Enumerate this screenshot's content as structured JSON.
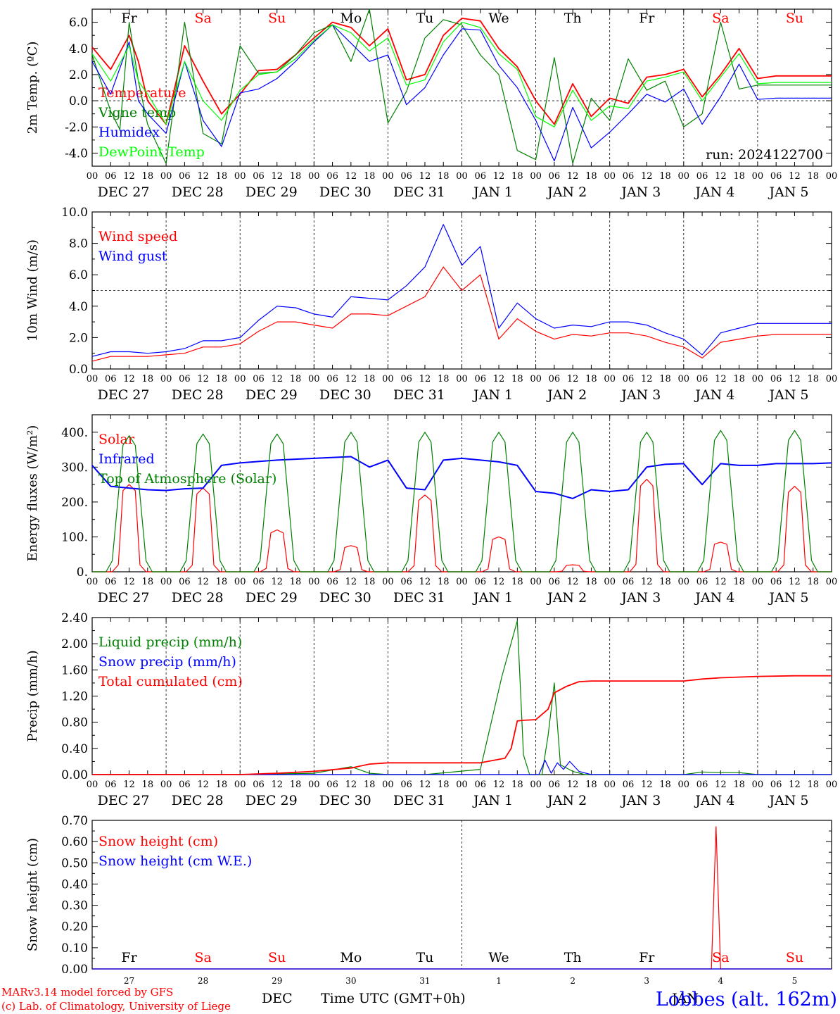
{
  "x_hour_labels": [
    "00",
    "06",
    "12",
    "18"
  ],
  "x_last_label": "00",
  "date_labels": [
    "DEC 27",
    "DEC 28",
    "DEC 29",
    "DEC 30",
    "DEC 31",
    "JAN  1",
    "JAN  2",
    "JAN  3",
    "JAN  4",
    "JAN  5"
  ],
  "weekdays": [
    {
      "label": "Fr",
      "color": "#000000"
    },
    {
      "label": "Sa",
      "color": "#ff0000"
    },
    {
      "label": "Su",
      "color": "#ff0000"
    },
    {
      "label": "Mo",
      "color": "#000000"
    },
    {
      "label": "Tu",
      "color": "#000000"
    },
    {
      "label": "We",
      "color": "#000000"
    },
    {
      "label": "Th",
      "color": "#000000"
    },
    {
      "label": "Fr",
      "color": "#000000"
    },
    {
      "label": "Sa",
      "color": "#ff0000"
    },
    {
      "label": "Su",
      "color": "#ff0000"
    }
  ],
  "day_numbers": [
    "27",
    "28",
    "29",
    "30",
    "31",
    "1",
    "2",
    "3",
    "4",
    "5"
  ],
  "footer": {
    "month_left": "DEC",
    "axis_title": "Time UTC (GMT+0h)",
    "month_right": "JAN",
    "credit_1": "MARv3.14 model forced by GFS",
    "credit_2": "(c) Lab. of Climatology, University of Liege",
    "station": "Lobbes (alt. 162m)"
  },
  "colors": {
    "red": "#ff0000",
    "green": "#008000",
    "blue": "#0000ff",
    "lightgreen": "#00ff00"
  },
  "chart_data": [
    {
      "type": "line",
      "ylabel": "2m Temp. (ºC)",
      "ylim": [
        -5,
        7
      ],
      "yticks": [
        -4,
        -2,
        0,
        2,
        4,
        6
      ],
      "ytick_labels": [
        "-4.0",
        "-2.0",
        "0.0",
        "2.0",
        "4.0",
        "6.0"
      ],
      "ref_line": 0,
      "annotation": "run: 2024122700",
      "x_unit": "hours since DEC 27 00 UTC",
      "series": [
        {
          "name": "Temperature",
          "color": "#ff0000",
          "x": [
            0,
            6,
            12,
            15,
            18,
            24,
            30,
            36,
            42,
            48,
            54,
            60,
            66,
            72,
            78,
            84,
            90,
            96,
            102,
            108,
            114,
            120,
            126,
            132,
            138,
            144,
            150,
            156,
            162,
            168,
            174,
            180,
            186,
            192,
            198,
            204,
            210,
            216,
            222,
            228,
            234,
            240
          ],
          "y": [
            4.1,
            2.4,
            5.0,
            3.0,
            0.0,
            -1.8,
            4.2,
            1.5,
            -1.0,
            0.5,
            2.3,
            2.4,
            3.5,
            4.8,
            6.0,
            5.6,
            4.2,
            5.5,
            1.6,
            2.0,
            5.0,
            6.3,
            6.1,
            4.0,
            2.6,
            0.0,
            -1.8,
            1.3,
            -1.2,
            0.2,
            -0.2,
            1.8,
            2.0,
            2.4,
            0.3,
            2.0,
            4.0,
            1.7,
            1.9,
            1.9,
            1.9,
            1.9
          ]
        },
        {
          "name": "Vigne temp",
          "color": "#008000",
          "x": [
            0,
            6,
            9,
            12,
            15,
            18,
            24,
            30,
            36,
            42,
            48,
            54,
            60,
            66,
            72,
            78,
            84,
            90,
            96,
            102,
            108,
            114,
            120,
            126,
            132,
            138,
            144,
            150,
            156,
            162,
            168,
            174,
            180,
            186,
            192,
            198,
            204,
            210,
            216,
            222,
            228,
            234,
            240
          ],
          "y": [
            3.5,
            -0.8,
            -2.2,
            6.0,
            1.5,
            -1.8,
            -4.8,
            6.0,
            -2.5,
            -3.3,
            4.2,
            2.1,
            2.2,
            3.5,
            5.2,
            5.8,
            3.0,
            7.0,
            -1.7,
            0.7,
            4.8,
            6.2,
            5.8,
            3.5,
            2.0,
            -3.8,
            -4.5,
            3.3,
            -4.8,
            0.2,
            -1.5,
            3.2,
            0.8,
            1.5,
            -2.0,
            -1.0,
            6.0,
            0.9,
            1.2,
            1.2,
            1.2,
            1.2,
            1.2
          ]
        },
        {
          "name": "Humidex",
          "color": "#0000ff",
          "x": [
            0,
            6,
            12,
            15,
            18,
            24,
            30,
            36,
            42,
            48,
            54,
            60,
            66,
            72,
            78,
            84,
            90,
            96,
            102,
            108,
            114,
            120,
            126,
            132,
            138,
            144,
            150,
            156,
            162,
            168,
            174,
            180,
            186,
            192,
            198,
            204,
            210,
            216,
            222,
            228,
            234,
            240
          ],
          "y": [
            3.0,
            0.5,
            4.5,
            0.0,
            -1.0,
            -2.5,
            3.0,
            -1.5,
            -3.5,
            0.6,
            0.9,
            1.7,
            3.0,
            4.5,
            5.8,
            4.4,
            3.0,
            3.5,
            -0.3,
            1.0,
            3.5,
            5.5,
            5.4,
            2.7,
            1.0,
            -1.5,
            -4.6,
            -0.5,
            -3.6,
            -2.4,
            -1.0,
            0.5,
            -0.1,
            0.9,
            -1.8,
            0.3,
            2.8,
            0.1,
            0.2,
            0.2,
            0.2,
            0.2
          ]
        },
        {
          "name": "DewPoint Temp",
          "color": "#00ff00",
          "x": [
            0,
            6,
            12,
            15,
            18,
            24,
            30,
            36,
            42,
            48,
            54,
            60,
            66,
            72,
            78,
            84,
            90,
            96,
            102,
            108,
            114,
            120,
            126,
            132,
            138,
            144,
            150,
            156,
            162,
            168,
            174,
            180,
            186,
            192,
            198,
            204,
            210,
            216,
            222,
            228,
            234,
            240
          ],
          "y": [
            3.6,
            1.5,
            4.2,
            1.5,
            0.5,
            -1.8,
            3.0,
            0.0,
            -1.5,
            0.8,
            2.0,
            2.2,
            3.2,
            4.6,
            5.8,
            5.2,
            3.8,
            4.8,
            1.2,
            1.6,
            4.5,
            6.0,
            5.6,
            3.6,
            2.4,
            -1.2,
            -2.0,
            0.8,
            -1.5,
            -0.4,
            -0.6,
            1.5,
            1.8,
            2.2,
            0.0,
            1.8,
            3.6,
            1.3,
            1.4,
            1.4,
            1.4,
            1.4
          ]
        }
      ]
    },
    {
      "type": "line",
      "ylabel": "10m Wind (m/s)",
      "ylim": [
        0,
        10
      ],
      "yticks": [
        0,
        2,
        4,
        6,
        8,
        10
      ],
      "ytick_labels": [
        "0.0",
        "2.0",
        "4.0",
        "6.0",
        "8.0",
        "10.0"
      ],
      "ref_line": 5,
      "x_unit": "hours since DEC 27 00 UTC",
      "series": [
        {
          "name": "Wind speed",
          "color": "#ff0000",
          "x": [
            0,
            6,
            12,
            18,
            24,
            30,
            36,
            42,
            48,
            54,
            60,
            66,
            72,
            78,
            84,
            90,
            96,
            102,
            108,
            114,
            120,
            126,
            132,
            138,
            144,
            150,
            156,
            162,
            168,
            174,
            180,
            186,
            192,
            198,
            204,
            210,
            216,
            222,
            228,
            234,
            240
          ],
          "y": [
            0.5,
            0.8,
            0.8,
            0.8,
            0.9,
            1.0,
            1.4,
            1.4,
            1.6,
            2.4,
            3.0,
            3.0,
            2.8,
            2.6,
            3.5,
            3.5,
            3.4,
            4.0,
            4.6,
            6.5,
            5.0,
            6.0,
            1.9,
            3.2,
            2.4,
            1.9,
            2.2,
            2.1,
            2.3,
            2.3,
            2.1,
            1.7,
            1.4,
            0.7,
            1.7,
            1.9,
            2.1,
            2.2,
            2.2,
            2.2,
            2.2
          ]
        },
        {
          "name": "Wind gust",
          "color": "#0000ff",
          "x": [
            0,
            6,
            12,
            18,
            24,
            30,
            36,
            42,
            48,
            54,
            60,
            66,
            72,
            78,
            84,
            90,
            96,
            102,
            108,
            114,
            120,
            126,
            132,
            138,
            144,
            150,
            156,
            162,
            168,
            174,
            180,
            186,
            192,
            198,
            204,
            210,
            216,
            222,
            228,
            234,
            240
          ],
          "y": [
            0.8,
            1.1,
            1.1,
            1.0,
            1.1,
            1.3,
            1.8,
            1.8,
            2.0,
            3.1,
            4.0,
            3.9,
            3.5,
            3.3,
            4.6,
            4.5,
            4.4,
            5.3,
            6.5,
            9.2,
            6.6,
            7.8,
            2.6,
            4.2,
            3.2,
            2.6,
            2.8,
            2.7,
            3.0,
            3.0,
            2.8,
            2.3,
            1.9,
            0.9,
            2.3,
            2.6,
            2.9,
            2.9,
            2.9,
            2.9,
            2.9
          ]
        }
      ]
    },
    {
      "type": "line",
      "ylabel": "Energy fluxes (W/m²)",
      "ylim": [
        0,
        450
      ],
      "yticks": [
        0,
        100,
        200,
        300,
        400
      ],
      "ytick_labels": [
        "0.",
        "100.",
        "200.",
        "300.",
        "400."
      ],
      "x_unit": "hours since DEC 27 00 UTC",
      "series": [
        {
          "name": "Solar",
          "color": "#ff0000",
          "daily_peak_hour": 12,
          "daily_peaks": [
            250,
            240,
            120,
            75,
            220,
            100,
            20,
            265,
            85,
            245
          ]
        },
        {
          "name": "Infrared",
          "color": "#0000ff",
          "x": [
            0,
            6,
            12,
            18,
            24,
            30,
            36,
            42,
            48,
            60,
            72,
            84,
            90,
            96,
            102,
            108,
            114,
            120,
            126,
            132,
            138,
            144,
            150,
            156,
            162,
            168,
            174,
            180,
            186,
            192,
            198,
            204,
            210,
            216,
            222,
            228,
            234,
            240
          ],
          "y": [
            305,
            245,
            240,
            235,
            233,
            238,
            240,
            305,
            312,
            320,
            325,
            330,
            300,
            320,
            240,
            235,
            320,
            325,
            320,
            315,
            305,
            230,
            225,
            210,
            235,
            230,
            235,
            300,
            308,
            310,
            250,
            310,
            305,
            305,
            310,
            310,
            310,
            312
          ]
        },
        {
          "name": "Top of Atmosphere (Solar)",
          "color": "#008000",
          "daily_peak_hour": 12,
          "daily_peaks": [
            390,
            395,
            395,
            400,
            400,
            400,
            400,
            400,
            405,
            405
          ]
        }
      ]
    },
    {
      "type": "line",
      "ylabel": "Precip (mm/h)",
      "ylim": [
        0,
        2.4
      ],
      "yticks": [
        0,
        0.4,
        0.8,
        1.2,
        1.6,
        2.0,
        2.4
      ],
      "ytick_labels": [
        "0.00",
        "0.40",
        "0.80",
        "1.20",
        "1.60",
        "2.00",
        "2.40"
      ],
      "x_unit": "hours since DEC 27 00 UTC",
      "series": [
        {
          "name": "Liquid precip (mm/h)",
          "color": "#008000",
          "x": [
            0,
            48,
            72,
            84,
            90,
            96,
            108,
            126,
            133,
            138,
            140,
            142,
            146,
            148,
            150,
            152,
            156,
            160,
            162,
            192,
            198,
            204,
            210,
            216,
            240
          ],
          "y": [
            0,
            0,
            0.02,
            0.12,
            0.02,
            0,
            0,
            0.08,
            1.5,
            2.35,
            0.3,
            0,
            0,
            0.6,
            1.4,
            0.15,
            0.05,
            0,
            0,
            0,
            0.04,
            0.03,
            0.03,
            0,
            0
          ]
        },
        {
          "name": "Snow precip (mm/h)",
          "color": "#0000ff",
          "x": [
            0,
            140,
            145,
            147,
            149,
            151,
            153,
            155,
            158,
            162,
            240
          ],
          "y": [
            0,
            0,
            0,
            0.22,
            0.02,
            0.18,
            0.08,
            0.2,
            0.05,
            0,
            0
          ]
        },
        {
          "name": "Total cumulated (cm)",
          "color": "#ff0000",
          "x": [
            0,
            48,
            60,
            72,
            84,
            90,
            96,
            108,
            126,
            134,
            136,
            138,
            140,
            144,
            148,
            150,
            154,
            158,
            162,
            168,
            180,
            192,
            198,
            204,
            216,
            228,
            240
          ],
          "y": [
            0,
            0,
            0.02,
            0.05,
            0.1,
            0.16,
            0.18,
            0.18,
            0.18,
            0.25,
            0.4,
            0.82,
            0.83,
            0.84,
            1.0,
            1.25,
            1.35,
            1.42,
            1.43,
            1.43,
            1.43,
            1.43,
            1.46,
            1.48,
            1.5,
            1.51,
            1.51
          ]
        }
      ]
    },
    {
      "type": "line",
      "ylabel": "Snow height (cm)",
      "ylim": [
        0,
        0.7
      ],
      "yticks": [
        0,
        0.1,
        0.2,
        0.3,
        0.4,
        0.5,
        0.6,
        0.7
      ],
      "ytick_labels": [
        "0.00",
        "0.10",
        "0.20",
        "0.30",
        "0.40",
        "0.50",
        "0.60",
        "0.70"
      ],
      "x_unit": "hours since DEC 27 00 UTC",
      "series": [
        {
          "name": "Snow height (cm)",
          "color": "#ff0000",
          "x": [
            0,
            200,
            201,
            202.5,
            204,
            240
          ],
          "y": [
            0,
            0,
            0,
            0.67,
            0,
            0
          ]
        },
        {
          "name": "Snow height (cm W.E.)",
          "color": "#0000ff",
          "x": [
            0,
            240
          ],
          "y": [
            0,
            0
          ]
        }
      ]
    }
  ]
}
